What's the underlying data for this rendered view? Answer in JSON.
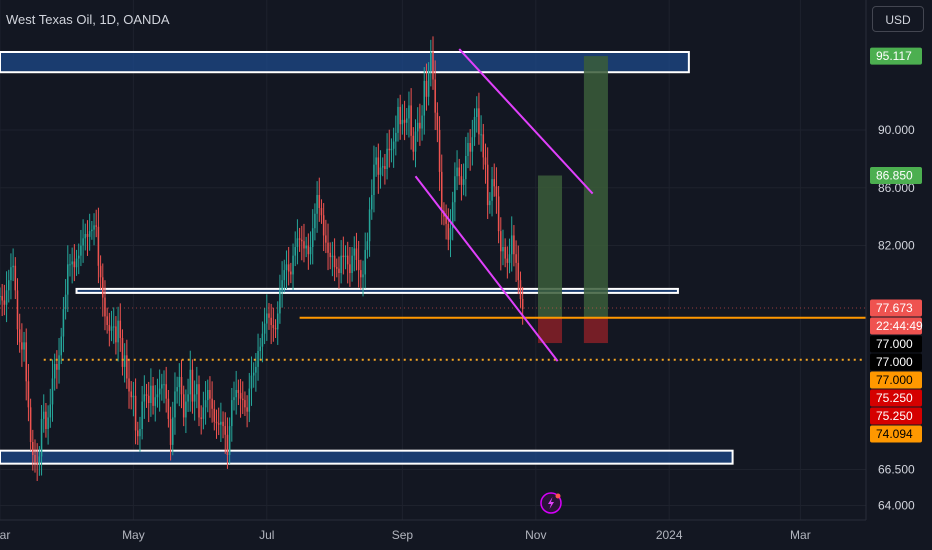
{
  "header": {
    "title": "West Texas Oil, 1D, OANDA",
    "currency_button": "USD"
  },
  "colors": {
    "background": "#131722",
    "up": "#26a69a",
    "down": "#ef5350",
    "zone_fill": "#1e4a8a",
    "zone_border": "#ffffff",
    "channel": "#e040fb",
    "level_solid": "#ff9800",
    "level_dotted": "#f5a623",
    "target_fill": "#3b5d3a",
    "stop_fill": "#7a1f27",
    "grid": "#1e222d"
  },
  "chart_data": {
    "type": "candlestick",
    "instrument": "West Texas Oil",
    "interval": "1D",
    "source": "OANDA",
    "xlabel": "",
    "ylabel": "",
    "x_tick_labels": [
      "Mar",
      "May",
      "Jul",
      "Sep",
      "Nov",
      "2024",
      "Mar"
    ],
    "x_tick_dates": [
      "2023-03-01",
      "2023-05-01",
      "2023-07-01",
      "2023-09-01",
      "2023-11-01",
      "2024-01-01",
      "2024-03-01"
    ],
    "y_tick_labels": [
      "90.000",
      "86.000",
      "82.000",
      "66.500",
      "64.000"
    ],
    "y_ticks": [
      90,
      86,
      82,
      66.5,
      64
    ],
    "ylim": [
      63,
      99
    ],
    "xlim": [
      "2023-03-01",
      "2024-03-31"
    ],
    "price_labels": [
      {
        "text": "95.117",
        "value": 95.117,
        "color": "#4caf50",
        "text_color": "#ffffff"
      },
      {
        "text": "86.850",
        "value": 86.85,
        "color": "#4caf50",
        "text_color": "#ffffff"
      },
      {
        "text": "77.673",
        "value": 77.673,
        "color": "#ef5350",
        "text_color": "#ffffff"
      },
      {
        "text": "22:44:49",
        "value": 77.673,
        "color": "#ef5350",
        "text_color": "#ffffff",
        "sub": true
      },
      {
        "text": "77.000",
        "value": 77.0,
        "color": "#000000",
        "text_color": "#ffffff"
      },
      {
        "text": "77.000",
        "value": 77.0,
        "color": "#000000",
        "text_color": "#ffffff"
      },
      {
        "text": "77.000",
        "value": 77.0,
        "color": "#ff9800",
        "text_color": "#000000"
      },
      {
        "text": "75.250",
        "value": 75.25,
        "color": "#d50000",
        "text_color": "#ffffff"
      },
      {
        "text": "75.250",
        "value": 75.25,
        "color": "#d50000",
        "text_color": "#ffffff"
      },
      {
        "text": "74.094",
        "value": 74.094,
        "color": "#ff9800",
        "text_color": "#000000"
      }
    ],
    "zones": [
      {
        "name": "upper-resistance-zone",
        "y_low": 94.0,
        "y_high": 95.4,
        "x_start": "2023-03-01",
        "x_end": "2024-01-10"
      },
      {
        "name": "middle-zone",
        "y_low": 78.8,
        "y_high": 79.0,
        "x_start": "2023-04-05",
        "x_end": "2024-01-05"
      },
      {
        "name": "lower-support-zone",
        "y_low": 66.9,
        "y_high": 67.8,
        "x_start": "2023-03-01",
        "x_end": "2024-01-30"
      }
    ],
    "channel_lines": [
      {
        "name": "channel-upper",
        "from": {
          "x": "2023-09-27",
          "y": 95.6
        },
        "to": {
          "x": "2023-11-27",
          "y": 85.6
        }
      },
      {
        "name": "channel-lower",
        "from": {
          "x": "2023-09-07",
          "y": 86.8
        },
        "to": {
          "x": "2023-11-11",
          "y": 74.0
        }
      }
    ],
    "levels": [
      {
        "name": "orange-level",
        "value": 77.0,
        "style": "solid",
        "x_start": "2023-07-16"
      },
      {
        "name": "dotted-level",
        "value": 74.094,
        "style": "dotted",
        "x_start": "2023-03-21"
      }
    ],
    "positions": [
      {
        "name": "trade-1",
        "x_start": "2023-11-02",
        "x_end": "2023-11-13",
        "entry": 77.0,
        "target": 86.85,
        "stop": 75.25
      },
      {
        "name": "trade-2",
        "x_start": "2023-11-23",
        "x_end": "2023-12-04",
        "entry": 77.0,
        "target": 95.117,
        "stop": 75.25
      }
    ],
    "series": [
      {
        "start": "2023-03-01",
        "step_days": 1,
        "close": [
          78.5,
          78.2,
          77.9,
          78.9,
          79.6,
          80.5,
          80.6,
          78.9,
          76.2,
          75.3,
          74.8,
          75.3,
          72.6,
          70.8,
          68.4,
          67.5,
          67.0,
          66.9,
          67.4,
          70.0,
          70.5,
          69.3,
          70.1,
          71.0,
          72.8,
          73.8,
          73.4,
          74.4,
          75.7,
          77.6,
          78.6,
          80.7,
          80.7,
          80.9,
          80.5,
          81.1,
          81.3,
          82.0,
          82.5,
          82.8,
          82.6,
          83.0,
          83.1,
          83.4,
          83.3,
          80.6,
          79.8,
          78.4,
          77.1,
          76.5,
          76.1,
          76.4,
          76.4,
          75.3,
          76.8,
          75.6,
          73.6,
          74.4,
          72.8,
          71.9,
          71.5,
          71.6,
          69.2,
          68.8,
          69.3,
          71.2,
          71.7,
          71.6,
          71.1,
          72.3,
          70.9,
          71.5,
          71.7,
          72.1,
          72.4,
          72.4,
          71.4,
          70.0,
          68.2,
          70.1,
          71.9,
          72.2,
          72.9,
          71.7,
          70.1,
          71.2,
          71.7,
          73.4,
          71.2,
          71.7,
          72.4,
          70.1,
          70.0,
          70.8,
          71.3,
          72.0,
          71.4,
          70.7,
          69.8,
          69.7,
          69.6,
          69.8,
          69.5,
          68.9,
          67.5,
          69.5,
          71.3,
          71.5,
          72.0,
          71.8,
          71.4,
          71.3,
          70.8,
          70.5,
          72.1,
          73.0,
          73.2,
          73.6,
          74.7,
          75.0,
          75.9,
          76.6,
          77.3,
          77.0,
          76.5,
          76.3,
          76.2,
          77.3,
          78.9,
          79.6,
          80.3,
          80.7,
          80.2,
          80.0,
          81.3,
          81.9,
          82.5,
          82.4,
          82.3,
          81.8,
          82.0,
          81.4,
          81.9,
          83.2,
          84.2,
          85.5,
          84.6,
          84.1,
          82.7,
          82.2,
          81.5,
          81.2,
          81.3,
          80.5,
          80.4,
          80.1,
          81.3,
          81.2,
          81.3,
          80.7,
          80.1,
          81.3,
          81.8,
          81.0,
          80.3,
          79.8,
          80.0,
          81.7,
          82.3,
          84.5,
          85.5,
          87.6,
          88.1,
          86.9,
          87.4,
          87.5,
          87.3,
          88.7,
          88.6,
          88.7,
          89.2,
          89.8,
          91.6,
          90.4,
          90.7,
          90.5,
          90.8,
          91.7,
          89.6,
          88.5,
          89.9,
          90.5,
          90.1,
          91.0,
          93.4,
          92.3,
          94.1,
          95.4,
          93.5,
          91.2,
          90.0,
          87.1,
          84.4,
          84.0,
          83.5,
          82.4,
          83.2,
          85.0,
          86.8,
          87.4,
          86.8,
          86.2,
          86.6,
          88.2,
          89.1,
          88.5,
          89.5,
          90.9,
          91.5,
          89.7,
          89.7,
          88.1,
          87.6,
          84.8,
          85.1,
          86.6,
          86.1,
          85.4,
          83.0,
          81.6,
          81.9,
          81.1,
          80.8,
          81.4,
          82.7,
          81.4,
          80.8,
          79.6,
          78.3,
          77.6
        ]
      }
    ]
  }
}
